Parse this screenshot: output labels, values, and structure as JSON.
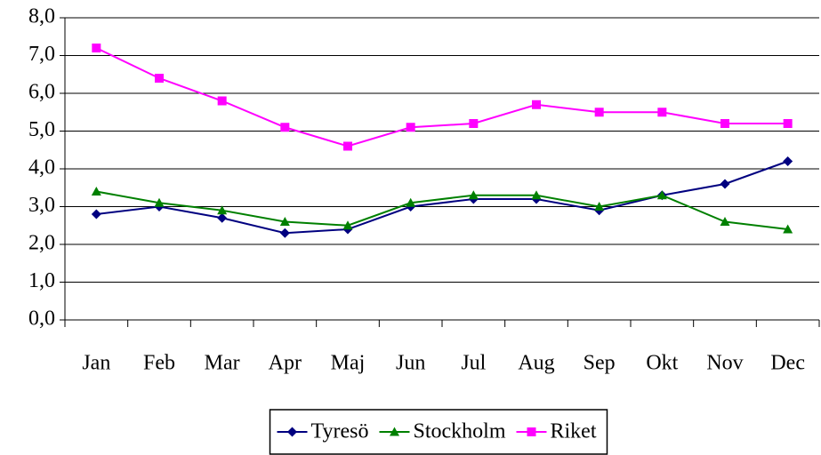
{
  "chart_data": {
    "type": "line",
    "categories": [
      "Jan",
      "Feb",
      "Mar",
      "Apr",
      "Maj",
      "Jun",
      "Jul",
      "Aug",
      "Sep",
      "Okt",
      "Nov",
      "Dec"
    ],
    "series": [
      {
        "name": "Tyresö",
        "color": "#000080",
        "marker": "diamond",
        "values": [
          2.8,
          3.0,
          2.7,
          2.3,
          2.4,
          3.0,
          3.2,
          3.2,
          2.9,
          3.3,
          3.6,
          4.2
        ]
      },
      {
        "name": "Stockholm",
        "color": "#008000",
        "marker": "triangle",
        "values": [
          3.4,
          3.1,
          2.9,
          2.6,
          2.5,
          3.1,
          3.3,
          3.3,
          3.0,
          3.3,
          2.6,
          2.4
        ]
      },
      {
        "name": "Riket",
        "color": "#ff00ff",
        "marker": "square",
        "values": [
          7.2,
          6.4,
          5.8,
          5.1,
          4.6,
          5.1,
          5.2,
          5.7,
          5.5,
          5.5,
          5.2,
          5.2
        ]
      }
    ],
    "ylim": [
      0,
      8
    ],
    "yticks": [
      {
        "value": 0,
        "label": "0,0"
      },
      {
        "value": 1,
        "label": "1,0"
      },
      {
        "value": 2,
        "label": "2,0"
      },
      {
        "value": 3,
        "label": "3,0"
      },
      {
        "value": 4,
        "label": "4,0"
      },
      {
        "value": 5,
        "label": "5,0"
      },
      {
        "value": 6,
        "label": "6,0"
      },
      {
        "value": 7,
        "label": "7,0"
      },
      {
        "value": 8,
        "label": "8,0"
      }
    ],
    "grid": true,
    "legend": "bottom"
  }
}
